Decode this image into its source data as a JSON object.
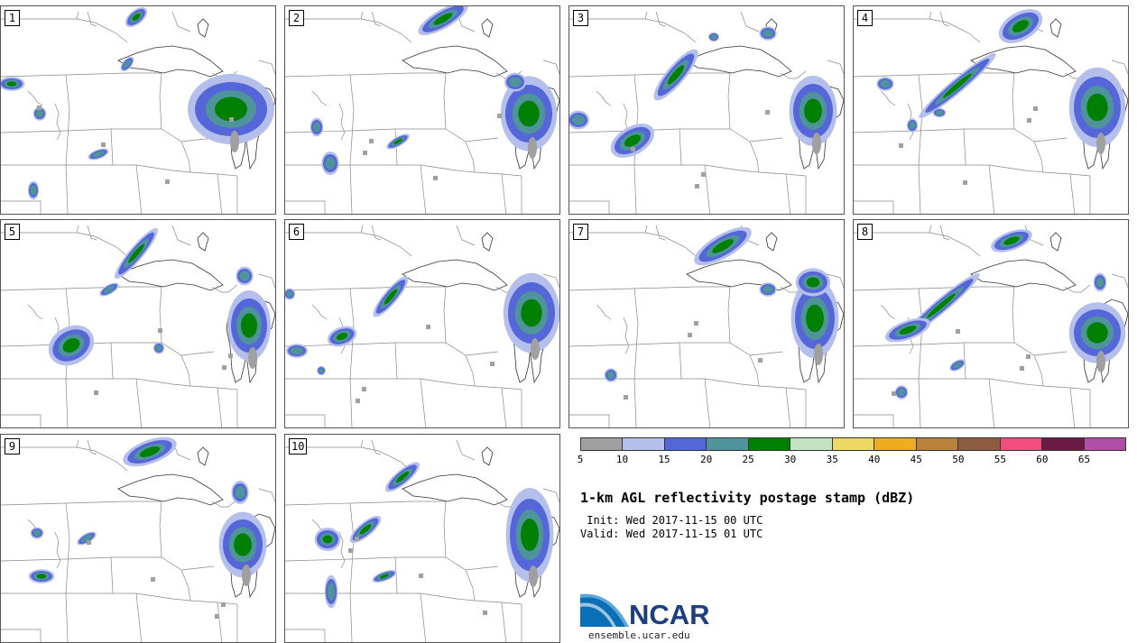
{
  "figure_title": "1-km AGL reflectivity postage stamp (dBZ)",
  "init_text": " Init: Wed 2017-11-15 00 UTC",
  "valid_text": "Valid: Wed 2017-11-15 01 UTC",
  "logo_text": "NCAR",
  "site_text": "ensemble.ucar.edu",
  "members": [
    "1",
    "2",
    "3",
    "4",
    "5",
    "6",
    "7",
    "8",
    "9",
    "10"
  ],
  "colorbar": {
    "colors": [
      "#a0a0a0",
      "#b4bfeb",
      "#5566d9",
      "#4e949a",
      "#008000",
      "#c2e2c1",
      "#ecd863",
      "#eeac1f",
      "#b8823c",
      "#8d5b44",
      "#f14e7e",
      "#6b1a44",
      "#b04da6"
    ],
    "ticks": [
      "5",
      "10",
      "15",
      "20",
      "25",
      "30",
      "35",
      "40",
      "45",
      "50",
      "55",
      "60",
      "65"
    ]
  }
}
